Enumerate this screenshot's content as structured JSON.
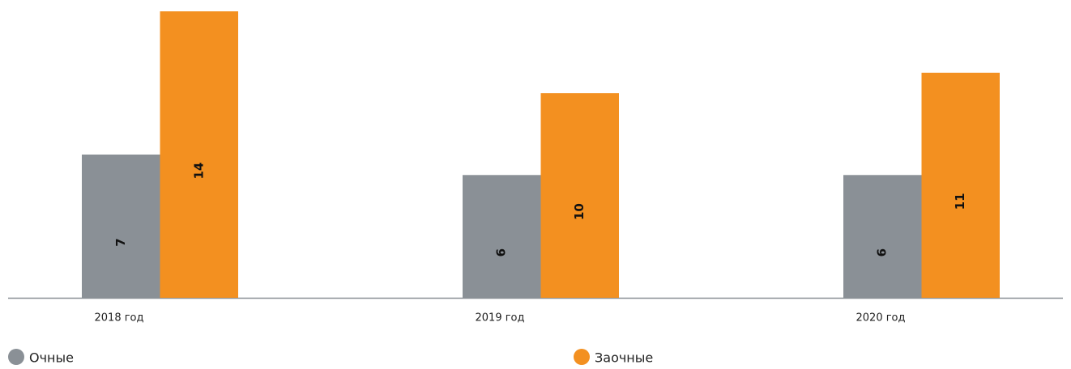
{
  "chart_data": {
    "type": "bar",
    "categories": [
      "2018 год",
      "2019 год",
      "2020 год"
    ],
    "series": [
      {
        "name": "Очные",
        "color": "#8a9096",
        "values": [
          7,
          6,
          6
        ]
      },
      {
        "name": "Заочные",
        "color": "#f39020",
        "values": [
          14,
          10,
          11
        ]
      }
    ],
    "legend": "bottom"
  }
}
